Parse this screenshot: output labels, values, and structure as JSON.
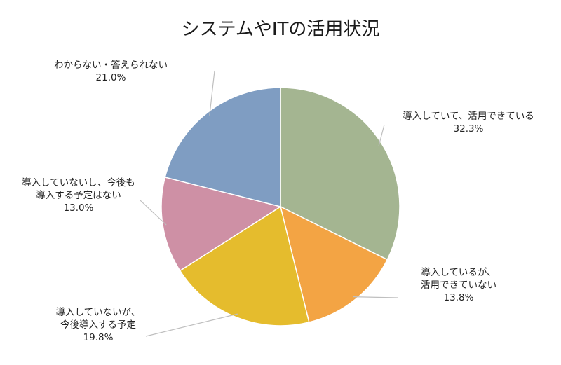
{
  "chart_data": {
    "type": "pie",
    "title": "システムやITの活用状況",
    "start_angle_deg": 0,
    "direction": "clockwise",
    "legend": "none",
    "slices": [
      {
        "lines": [
          "導入していて、活用できている"
        ],
        "value_label": "32.3%",
        "value": 32.3,
        "color": "#a4b591"
      },
      {
        "lines": [
          "導入しているが、",
          "活用できていない"
        ],
        "value_label": "13.8%",
        "value": 13.8,
        "color": "#f3a444"
      },
      {
        "lines": [
          "導入していないが、",
          "今後導入する予定"
        ],
        "value_label": "19.8%",
        "value": 19.8,
        "color": "#e5bc2d"
      },
      {
        "lines": [
          "導入していないし、今後も",
          "導入する予定はない"
        ],
        "value_label": "13.0%",
        "value": 13.0,
        "color": "#ce90a5"
      },
      {
        "lines": [
          "わからない・答えられない"
        ],
        "value_label": "21.0%",
        "value": 21.0,
        "color": "#7f9dc2"
      }
    ]
  }
}
